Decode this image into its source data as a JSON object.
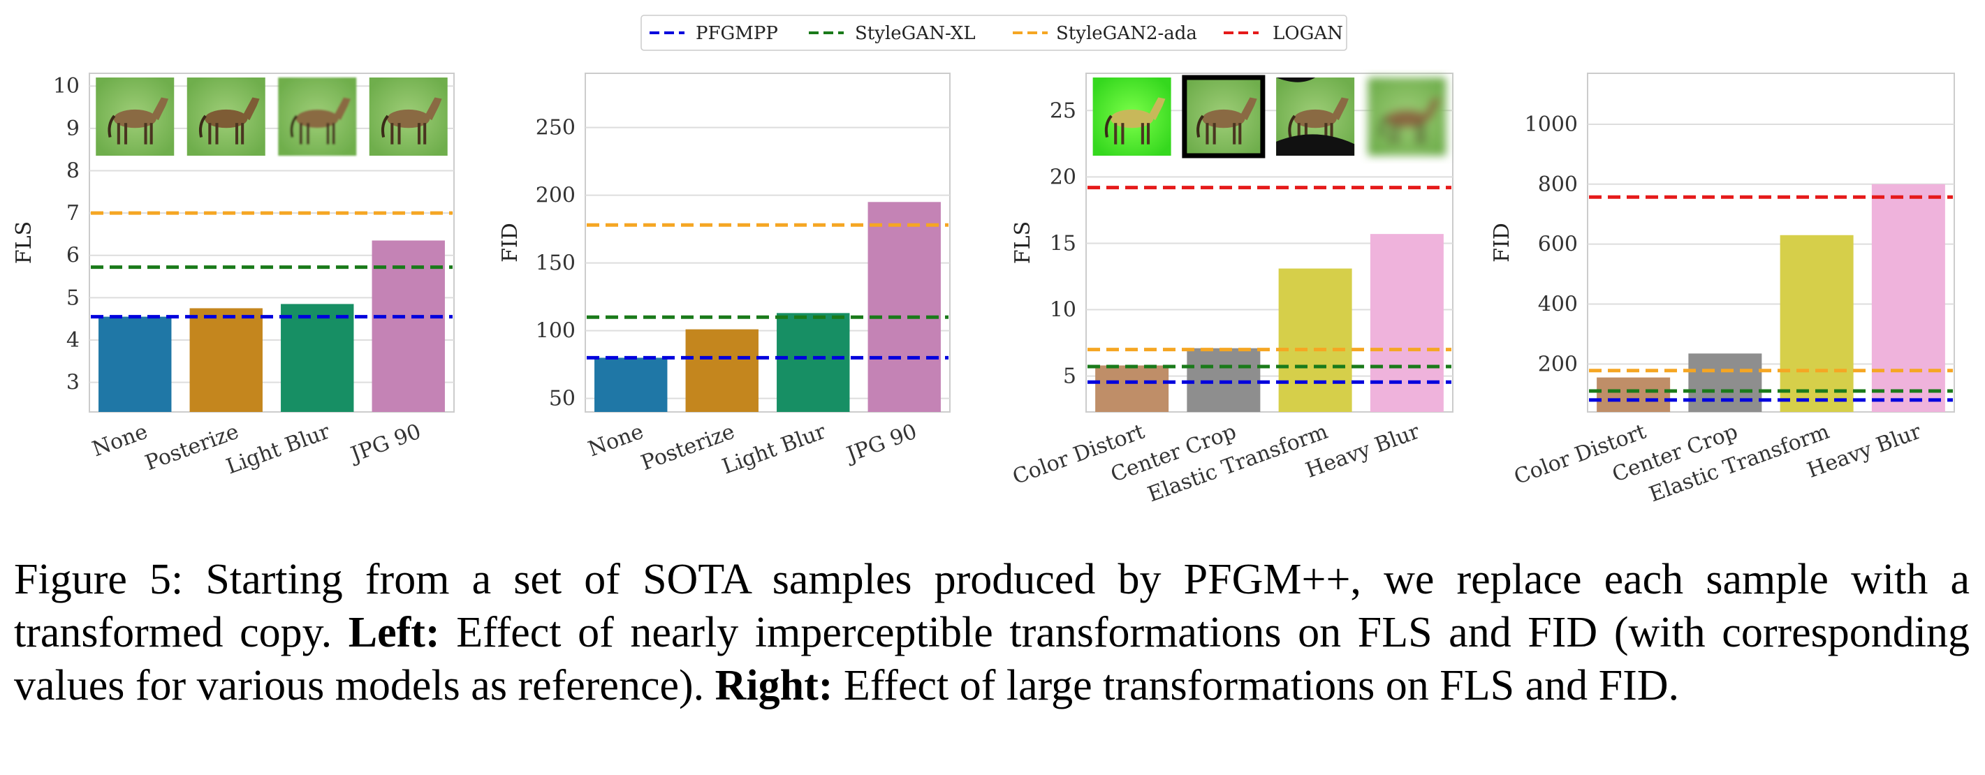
{
  "legend": [
    {
      "label": "PFGMPP",
      "color": "#0000dd"
    },
    {
      "label": "StyleGAN-XL",
      "color": "#1a7a1a"
    },
    {
      "label": "StyleGAN2-ada",
      "color": "#f5a623"
    },
    {
      "label": "LOGAN",
      "color": "#e51a1a"
    }
  ],
  "chart_data": [
    {
      "type": "bar",
      "title": "",
      "ylabel": "FLS",
      "ylim": [
        2.3,
        10.3
      ],
      "yticks": [
        3,
        4,
        5,
        6,
        7,
        8,
        9,
        10
      ],
      "categories": [
        "None",
        "Posterize",
        "Light Blur",
        "JPG 90"
      ],
      "values": [
        4.55,
        4.75,
        4.85,
        6.35
      ],
      "bar_colors": [
        "#1f77a6",
        "#c4861e",
        "#178f64",
        "#c483b5"
      ],
      "reference_lines": [
        {
          "model": "PFGMPP",
          "value": 4.55,
          "color": "#0000dd"
        },
        {
          "model": "StyleGAN-XL",
          "value": 5.72,
          "color": "#1a7a1a"
        },
        {
          "model": "StyleGAN2-ada",
          "value": 7.0,
          "color": "#f5a623"
        }
      ],
      "thumbnails": [
        "horse-original",
        "horse-posterize",
        "horse-light-blur",
        "horse-jpg90"
      ]
    },
    {
      "type": "bar",
      "title": "",
      "ylabel": "FID",
      "ylim": [
        40,
        290
      ],
      "yticks": [
        50,
        100,
        150,
        200,
        250
      ],
      "categories": [
        "None",
        "Posterize",
        "Light Blur",
        "JPG 90"
      ],
      "values": [
        80,
        101,
        113,
        195
      ],
      "bar_colors": [
        "#1f77a6",
        "#c4861e",
        "#178f64",
        "#c483b5"
      ],
      "reference_lines": [
        {
          "model": "PFGMPP",
          "value": 80,
          "color": "#0000dd"
        },
        {
          "model": "StyleGAN-XL",
          "value": 110,
          "color": "#1a7a1a"
        },
        {
          "model": "StyleGAN2-ada",
          "value": 178,
          "color": "#f5a623"
        }
      ]
    },
    {
      "type": "bar",
      "title": "",
      "ylabel": "FLS",
      "ylim": [
        2.3,
        27.8
      ],
      "yticks": [
        5,
        10,
        15,
        20,
        25
      ],
      "categories": [
        "Color Distort",
        "Center Crop",
        "Elastic Transform",
        "Heavy Blur"
      ],
      "values": [
        5.8,
        7.1,
        13.1,
        15.7
      ],
      "bar_colors": [
        "#bf8e68",
        "#8e8e8e",
        "#d6cf4a",
        "#efb3dc"
      ],
      "reference_lines": [
        {
          "model": "PFGMPP",
          "value": 4.55,
          "color": "#0000dd"
        },
        {
          "model": "StyleGAN-XL",
          "value": 5.72,
          "color": "#1a7a1a"
        },
        {
          "model": "StyleGAN2-ada",
          "value": 7.0,
          "color": "#f5a623"
        },
        {
          "model": "LOGAN",
          "value": 19.2,
          "color": "#e51a1a"
        }
      ],
      "thumbnails": [
        "horse-color-distort",
        "horse-center-crop",
        "horse-elastic-transform",
        "horse-heavy-blur"
      ]
    },
    {
      "type": "bar",
      "title": "",
      "ylabel": "FID",
      "ylim": [
        40,
        1170
      ],
      "yticks": [
        200,
        400,
        600,
        800,
        1000
      ],
      "categories": [
        "Color Distort",
        "Center Crop",
        "Elastic Transform",
        "Heavy Blur"
      ],
      "values": [
        155,
        235,
        630,
        800
      ],
      "bar_colors": [
        "#bf8e68",
        "#8e8e8e",
        "#d6cf4a",
        "#efb3dc"
      ],
      "reference_lines": [
        {
          "model": "PFGMPP",
          "value": 80,
          "color": "#0000dd"
        },
        {
          "model": "StyleGAN-XL",
          "value": 110,
          "color": "#1a7a1a"
        },
        {
          "model": "StyleGAN2-ada",
          "value": 178,
          "color": "#f5a623"
        },
        {
          "model": "LOGAN",
          "value": 757,
          "color": "#e51a1a"
        }
      ]
    }
  ],
  "caption": {
    "label": "Figure 5:",
    "text1": " Starting from a set of SOTA samples produced by PFGM++, we replace each sample with a transformed copy. ",
    "bold1": "Left:",
    "text2": " Effect of nearly imperceptible transformations on FLS and FID (with corresponding values for various models as reference). ",
    "bold2": "Right:",
    "text3": " Effect of large transformations on FLS and FID."
  }
}
